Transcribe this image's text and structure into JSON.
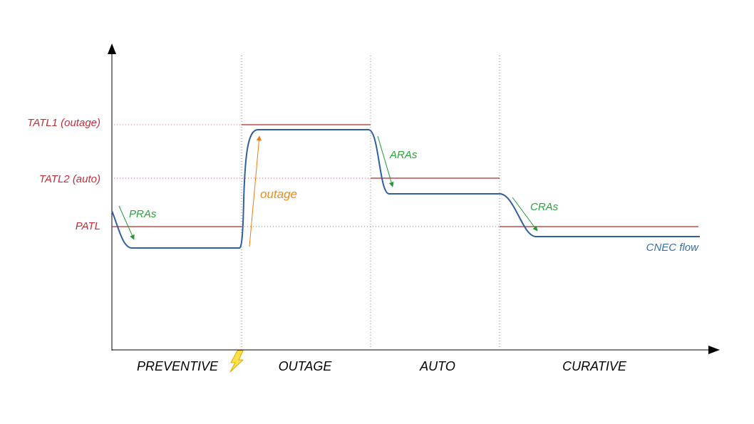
{
  "limits": {
    "tatl1": "TATL1 (outage)",
    "tatl2": "TATL2 (auto)",
    "patl": "PATL"
  },
  "actions": {
    "pras": "PRAs",
    "aras": "ARAs",
    "cras": "CRAs",
    "outage": "outage"
  },
  "flow_label": "CNEC flow",
  "phases": {
    "preventive": "PREVENTIVE",
    "outage": "OUTAGE",
    "auto": "AUTO",
    "curative": "CURATIVE"
  },
  "icons": {
    "contingency": "lightning-bolt-icon"
  },
  "colors": {
    "limit": "#c0303c",
    "flow": "#2f5fa0",
    "remedial_action": "#26a33b",
    "outage": "#f08a1a",
    "axis": "#000000",
    "divider": "#888888"
  }
}
